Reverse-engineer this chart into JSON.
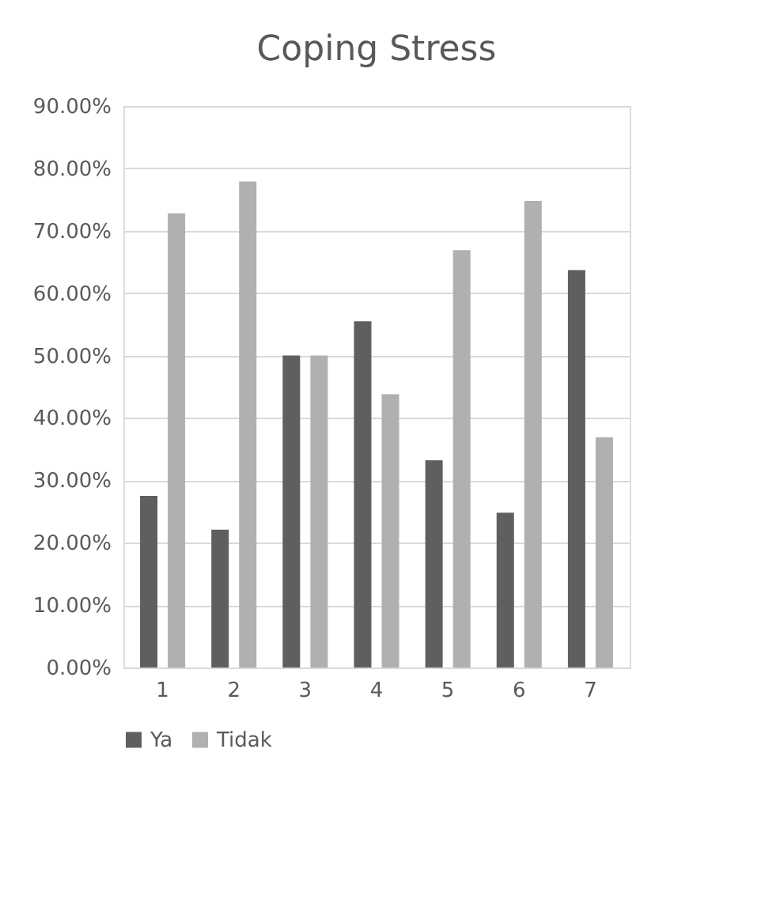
{
  "chart_data": {
    "type": "bar",
    "title": "Coping Stress",
    "categories": [
      "1",
      "2",
      "3",
      "4",
      "5",
      "6",
      "7"
    ],
    "series": [
      {
        "name": "Ya",
        "color": "#5f5f5f",
        "values": [
          27.5,
          22.1,
          50.0,
          55.5,
          33.2,
          24.8,
          63.7
        ]
      },
      {
        "name": "Tidak",
        "color": "#b0b0b0",
        "values": [
          72.8,
          77.9,
          50.0,
          43.8,
          66.9,
          74.8,
          36.9
        ]
      }
    ],
    "ylim": [
      0,
      90
    ],
    "yticks": [
      {
        "value": 0,
        "label": "0.00%"
      },
      {
        "value": 10,
        "label": "10.00%"
      },
      {
        "value": 20,
        "label": "20.00%"
      },
      {
        "value": 30,
        "label": "30.00%"
      },
      {
        "value": 40,
        "label": "40.00%"
      },
      {
        "value": 50,
        "label": "50.00%"
      },
      {
        "value": 60,
        "label": "60.00%"
      },
      {
        "value": 70,
        "label": "70.00%"
      },
      {
        "value": 80,
        "label": "80.00%"
      },
      {
        "value": 90,
        "label": "90.00%"
      }
    ],
    "grid": "y",
    "legend": "bottom"
  }
}
